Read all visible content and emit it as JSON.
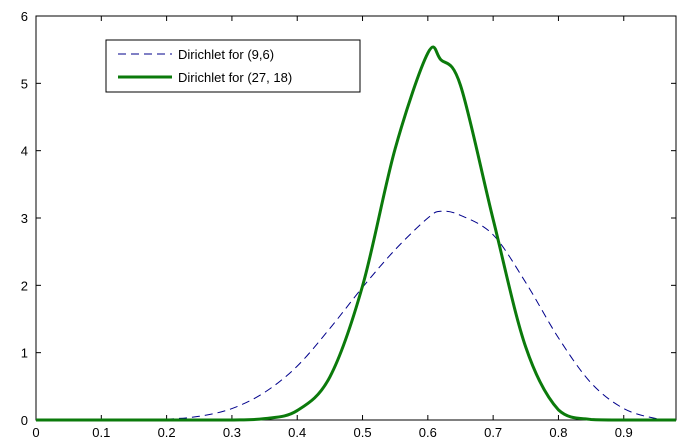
{
  "chart_data": {
    "type": "line",
    "title": "",
    "xlabel": "",
    "ylabel": "",
    "xlim": [
      0,
      0.98
    ],
    "ylim": [
      0,
      6
    ],
    "x_ticks": [
      0,
      0.1,
      0.2,
      0.3,
      0.4,
      0.5,
      0.6,
      0.7,
      0.8,
      0.9
    ],
    "x_tick_labels": [
      "0",
      "0.1",
      "0.2",
      "0.3",
      "0.4",
      "0.5",
      "0.6",
      "0.7",
      "0.8",
      "0.9"
    ],
    "y_ticks": [
      0,
      1,
      2,
      3,
      4,
      5,
      6
    ],
    "y_tick_labels": [
      "0",
      "1",
      "2",
      "3",
      "4",
      "5",
      "6"
    ],
    "grid": false,
    "legend_position": "top-left",
    "series": [
      {
        "name": "Dirichlet for (9,6)",
        "style": "dashed",
        "color": "#00008b",
        "x": [
          0,
          0.05,
          0.1,
          0.15,
          0.2,
          0.25,
          0.3,
          0.35,
          0.4,
          0.45,
          0.5,
          0.55,
          0.6,
          0.62,
          0.65,
          0.7,
          0.75,
          0.8,
          0.85,
          0.9,
          0.95,
          0.98
        ],
        "y": [
          0,
          0.0,
          0.0,
          0.002,
          0.013,
          0.055,
          0.17,
          0.41,
          0.8,
          1.36,
          1.97,
          2.53,
          3.0,
          3.1,
          3.04,
          2.75,
          2.04,
          1.22,
          0.55,
          0.17,
          0.02,
          0.0
        ]
      },
      {
        "name": "Dirichlet for (27, 18)",
        "style": "solid",
        "color": "#0b7a0b",
        "x": [
          0,
          0.1,
          0.2,
          0.3,
          0.35,
          0.4,
          0.45,
          0.5,
          0.55,
          0.6,
          0.62,
          0.65,
          0.7,
          0.75,
          0.8,
          0.85,
          0.9,
          0.95,
          0.98
        ],
        "y": [
          0,
          0.0,
          0.0,
          0.0,
          0.02,
          0.14,
          0.64,
          1.99,
          4.03,
          5.45,
          5.35,
          4.97,
          2.98,
          1.08,
          0.15,
          0.008,
          0.0,
          0.0,
          0.0
        ]
      }
    ]
  }
}
